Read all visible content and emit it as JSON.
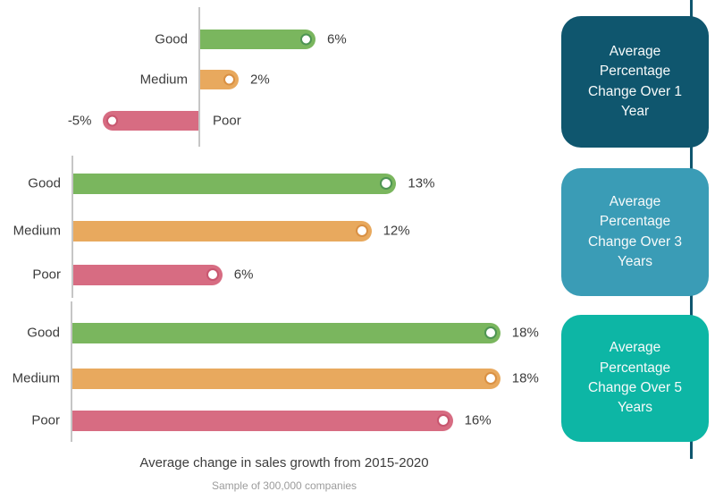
{
  "captions": {
    "title": "Average change in sales growth from 2015-2020",
    "subtitle": "Sample of 300,000 companies"
  },
  "colors": {
    "series": {
      "Good": "#7AB65E",
      "Medium": "#E8A95E",
      "Poor": "#D76C82"
    },
    "marker_rings": {
      "Good": "#4E9553",
      "Medium": "#D99043",
      "Poor": "#C8566F"
    },
    "axis": "#C6C6C6",
    "timeline_line": "#0F566E",
    "text": "#3C3C3C",
    "subtext": "#9C9C9C",
    "panel_text": "#F7FAFA",
    "panel_backgrounds": [
      "#0F566E",
      "#3A9CB6",
      "#0DB6A5"
    ]
  },
  "chart_data": [
    {
      "type": "bar",
      "orientation": "horizontal",
      "title": "Average Percentage Change Over 1 Year",
      "categories": [
        "Good",
        "Medium",
        "Poor"
      ],
      "values": [
        6,
        2,
        -5
      ],
      "value_labels": [
        "6%",
        "2%",
        "-5%"
      ],
      "unit": "%",
      "xlim": [
        -6,
        8
      ],
      "grid": false,
      "legend": "none",
      "marker": "white-circle-at-bar-end"
    },
    {
      "type": "bar",
      "orientation": "horizontal",
      "title": "Average Percentage Change Over 3 Years",
      "categories": [
        "Good",
        "Medium",
        "Poor"
      ],
      "values": [
        13,
        12,
        6
      ],
      "value_labels": [
        "13%",
        "12%",
        "6%"
      ],
      "unit": "%",
      "xlim": [
        0,
        15
      ],
      "grid": false,
      "legend": "none",
      "marker": "white-circle-at-bar-end"
    },
    {
      "type": "bar",
      "orientation": "horizontal",
      "title": "Average Percentage Change Over 5 Years",
      "categories": [
        "Good",
        "Medium",
        "Poor"
      ],
      "values": [
        18,
        18,
        16
      ],
      "value_labels": [
        "18%",
        "18%",
        "16%"
      ],
      "unit": "%",
      "xlim": [
        0,
        20
      ],
      "grid": false,
      "legend": "none",
      "marker": "white-circle-at-bar-end"
    }
  ],
  "panels": [
    {
      "label": "Average Percentage Change Over 1 Year"
    },
    {
      "label": "Average Percentage Change Over 3 Years"
    },
    {
      "label": "Average Percentage Change Over 5 Years"
    }
  ]
}
